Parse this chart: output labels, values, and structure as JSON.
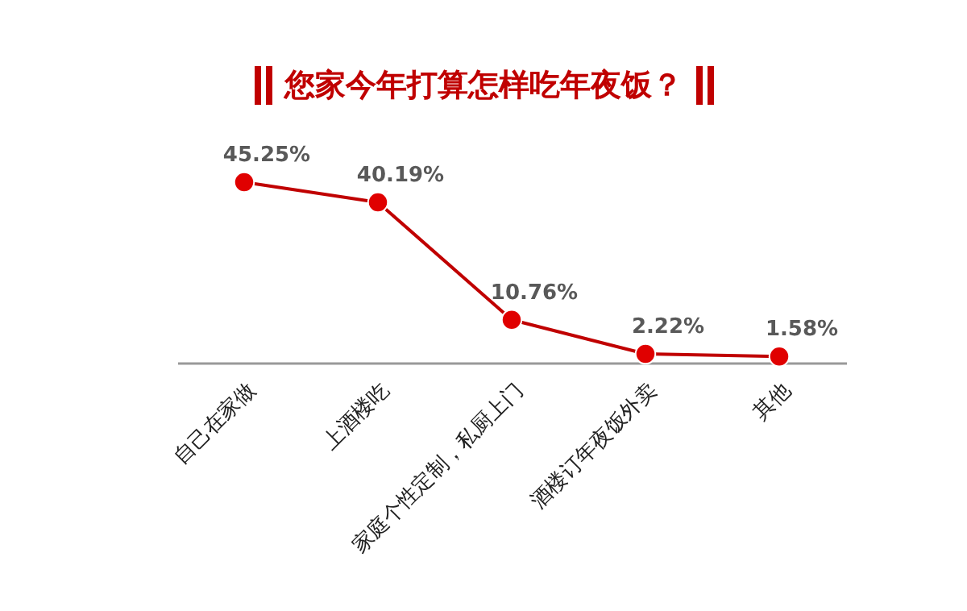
{
  "chart_data": {
    "type": "line",
    "title": "您家今年打算怎样吃年夜饭？",
    "categories": [
      "自己在家做",
      "上酒楼吃",
      "家庭个性定制，私厨上门",
      "酒楼订年夜饭外卖",
      "其他"
    ],
    "series": [
      {
        "color": "#c00000",
        "values": [
          45.25,
          40.19,
          10.76,
          2.22,
          1.58
        ],
        "value_labels": [
          "45.25%",
          "40.19%",
          "10.76%",
          "2.22%",
          "1.58%"
        ]
      }
    ],
    "relative": false,
    "marker": "circle",
    "line_style": "solid",
    "grid": false
  }
}
